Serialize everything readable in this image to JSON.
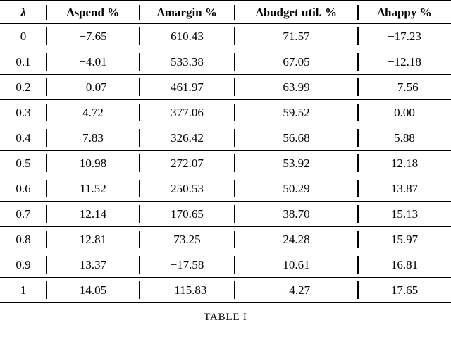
{
  "table": {
    "columns": [
      "λ",
      "Δspend %",
      "Δmargin %",
      "Δbudget util. %",
      "Δhappy %"
    ],
    "rows": [
      [
        "0",
        "−7.65",
        "610.43",
        "71.57",
        "−17.23"
      ],
      [
        "0.1",
        "−4.01",
        "533.38",
        "67.05",
        "−12.18"
      ],
      [
        "0.2",
        "−0.07",
        "461.97",
        "63.99",
        "−7.56"
      ],
      [
        "0.3",
        "4.72",
        "377.06",
        "59.52",
        "0.00"
      ],
      [
        "0.4",
        "7.83",
        "326.42",
        "56.68",
        "5.88"
      ],
      [
        "0.5",
        "10.98",
        "272.07",
        "53.92",
        "12.18"
      ],
      [
        "0.6",
        "11.52",
        "250.53",
        "50.29",
        "13.87"
      ],
      [
        "0.7",
        "12.14",
        "170.65",
        "38.70",
        "15.13"
      ],
      [
        "0.8",
        "12.81",
        "73.25",
        "24.28",
        "15.97"
      ],
      [
        "0.9",
        "13.37",
        "−17.58",
        "10.61",
        "16.81"
      ],
      [
        "1",
        "14.05",
        "−115.83",
        "−4.27",
        "17.65"
      ]
    ]
  },
  "caption": "TABLE I",
  "colors": {
    "text": "#000000",
    "background": "#ffffff",
    "rule": "#000000"
  }
}
